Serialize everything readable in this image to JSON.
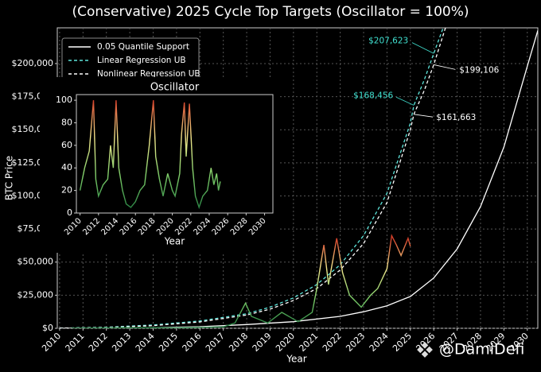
{
  "chart_data": {
    "type": "line",
    "title": "(Conservative) 2025 Cycle Top Targets (Oscillator = 100%)",
    "xlabel": "Year",
    "ylabel": "BTC Price",
    "xlim": [
      2009.9,
      2030.45
    ],
    "ylim": [
      0,
      227000
    ],
    "xticks": [
      2010,
      2011,
      2012,
      2013,
      2014,
      2015,
      2016,
      2017,
      2018,
      2019,
      2020,
      2021,
      2022,
      2023,
      2024,
      2025,
      2026,
      2027,
      2028,
      2029,
      2030
    ],
    "yticks": [
      {
        "value": 0,
        "label": "$0"
      },
      {
        "value": 25000,
        "label": "$25,000"
      },
      {
        "value": 50000,
        "label": "$50,000"
      },
      {
        "value": 75000,
        "label": "$75,000"
      },
      {
        "value": 100000,
        "label": "$100,000"
      },
      {
        "value": 125000,
        "label": "$125,000"
      },
      {
        "value": 150000,
        "label": "$150,000"
      },
      {
        "value": 175000,
        "label": "$175,000"
      },
      {
        "value": 200000,
        "label": "$200,000"
      }
    ],
    "grid": true,
    "legend": "upper left",
    "series": [
      {
        "name": "0.05 Quantile Support",
        "color": "#ffffff",
        "dash": false,
        "x": [
          2010,
          2012,
          2014,
          2016,
          2018,
          2020,
          2022,
          2023,
          2024,
          2025,
          2026,
          2027,
          2028,
          2029,
          2030,
          2030.45
        ],
        "values": [
          0,
          100,
          400,
          1200,
          2800,
          5000,
          9000,
          12500,
          17000,
          24000,
          38000,
          60000,
          92000,
          137000,
          198000,
          225000
        ]
      },
      {
        "name": "Linear Regression UB",
        "color": "#5ee6dc",
        "dash": true,
        "x": [
          2010,
          2012,
          2014,
          2016,
          2018,
          2019,
          2020,
          2021,
          2022,
          2023,
          2024,
          2025,
          2025.15,
          2025.6,
          2026,
          2026.4
        ],
        "values": [
          100,
          800,
          2500,
          5500,
          11000,
          16000,
          23000,
          33000,
          48000,
          70000,
          102000,
          155000,
          168456,
          188000,
          207623,
          227000
        ]
      },
      {
        "name": "Nonlinear Regression UB",
        "color": "#ffffff",
        "dash": true,
        "x": [
          2010,
          2012,
          2014,
          2016,
          2018,
          2019,
          2020,
          2021,
          2022,
          2023,
          2024,
          2025,
          2025.15,
          2025.6,
          2026,
          2026.5
        ],
        "values": [
          100,
          600,
          2000,
          4800,
          10000,
          14500,
          21000,
          30000,
          44000,
          64000,
          95000,
          150000,
          161663,
          180000,
          199106,
          227000
        ]
      },
      {
        "color_scale": [
          "#1f7a3f",
          "#7fcf6a",
          "#f2e68c",
          "#d6402a"
        ],
        "x": [
          2010.5,
          2013,
          2015,
          2017,
          2017.5,
          2017.95,
          2018.2,
          2018.9,
          2019.5,
          2019.9,
          2020.2,
          2020.8,
          2021.0,
          2021.3,
          2021.5,
          2021.85,
          2022.1,
          2022.4,
          2022.9,
          2023.3,
          2023.6,
          2024.0,
          2024.2,
          2024.4,
          2024.6,
          2024.9,
          2025.0
        ],
        "values": [
          0,
          500,
          300,
          1000,
          4000,
          19000,
          9000,
          4000,
          12000,
          8000,
          5000,
          12000,
          30000,
          63000,
          33000,
          68000,
          42000,
          25000,
          16000,
          25000,
          30000,
          45000,
          70000,
          63000,
          55000,
          68000,
          62000
        ]
      }
    ],
    "annotations": [
      {
        "label": "$207,623",
        "x": 2026.0,
        "value": 207623,
        "color": "#40e0d0"
      },
      {
        "label": "$199,106",
        "x": 2026.0,
        "value": 199106,
        "color": "#ffffff"
      },
      {
        "label": "$168,456",
        "x": 2025.15,
        "value": 168456,
        "color": "#40e0d0"
      },
      {
        "label": "$161,663",
        "x": 2025.15,
        "value": 161663,
        "color": "#ffffff"
      }
    ],
    "watermark": "@DamiDefi",
    "inset": {
      "type": "line",
      "title": "Oscillator",
      "xlabel": "Year",
      "xlim": [
        2009.6,
        2030.9
      ],
      "ylim": [
        0,
        105
      ],
      "xticks": [
        2010,
        2012,
        2014,
        2016,
        2018,
        2020,
        2022,
        2024,
        2026,
        2028,
        2030
      ],
      "yticks": [
        0,
        20,
        40,
        60,
        80,
        100
      ],
      "series": [
        {
          "color_scale": [
            "#1f7a3f",
            "#7fcf6a",
            "#f2e68c",
            "#d6402a"
          ],
          "x": [
            2010.0,
            2010.5,
            2011.0,
            2011.45,
            2011.7,
            2012.0,
            2012.5,
            2013.0,
            2013.3,
            2013.6,
            2013.9,
            2014.2,
            2014.6,
            2015.0,
            2015.5,
            2016.0,
            2016.5,
            2017.0,
            2017.5,
            2017.95,
            2018.2,
            2018.6,
            2019.0,
            2019.5,
            2020.0,
            2020.3,
            2020.8,
            2021.0,
            2021.3,
            2021.5,
            2021.85,
            2022.2,
            2022.5,
            2022.9,
            2023.3,
            2023.8,
            2024.2,
            2024.5,
            2024.8,
            2025.0,
            2025.2
          ],
          "values": [
            20,
            40,
            55,
            100,
            30,
            15,
            25,
            30,
            60,
            40,
            100,
            40,
            20,
            8,
            5,
            10,
            20,
            25,
            60,
            100,
            50,
            30,
            15,
            35,
            20,
            15,
            35,
            70,
            98,
            50,
            97,
            40,
            15,
            5,
            15,
            20,
            40,
            25,
            35,
            20,
            28
          ]
        }
      ]
    }
  }
}
